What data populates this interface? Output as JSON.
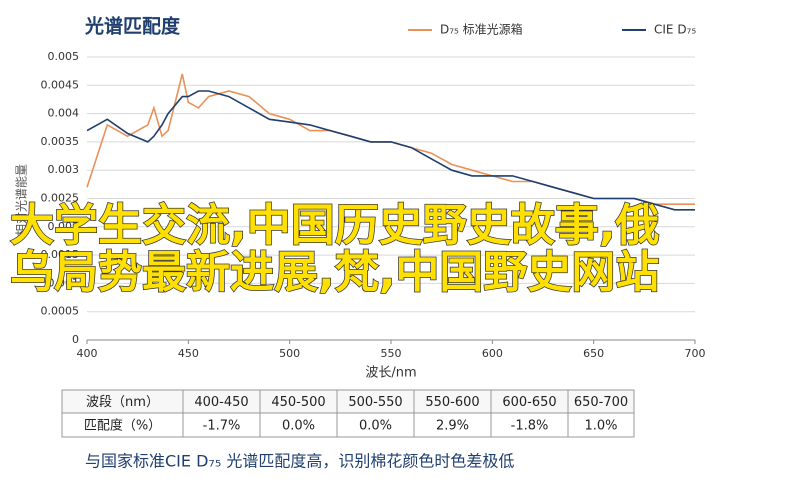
{
  "chart_data": {
    "type": "line",
    "title": "光谱匹配度",
    "xlabel": "波长/nm",
    "ylabel": "相对光谱能量",
    "x": [
      400,
      410,
      420,
      430,
      433,
      437,
      440,
      447,
      450,
      455,
      460,
      470,
      480,
      490,
      500,
      510,
      520,
      530,
      540,
      550,
      560,
      570,
      580,
      590,
      600,
      610,
      620,
      630,
      640,
      650,
      660,
      670,
      680,
      690,
      700
    ],
    "series": [
      {
        "name": "D₇₅ 标准光源箱",
        "color": "#e8925a",
        "values": [
          0.0027,
          0.0038,
          0.0036,
          0.0038,
          0.0041,
          0.0036,
          0.0037,
          0.0047,
          0.0042,
          0.0041,
          0.0043,
          0.0044,
          0.0043,
          0.004,
          0.0039,
          0.0037,
          0.0037,
          0.0036,
          0.0035,
          0.0035,
          0.0034,
          0.0033,
          0.0031,
          0.003,
          0.0029,
          0.0028,
          0.0028,
          0.0027,
          0.0026,
          0.0025,
          0.0025,
          0.0025,
          0.0024,
          0.0024,
          0.0024
        ]
      },
      {
        "name": "CIE D₇₅",
        "color": "#1f3f6e",
        "values": [
          0.0037,
          0.0039,
          0.00365,
          0.0035,
          0.0036,
          0.0038,
          0.004,
          0.0043,
          0.0043,
          0.0044,
          0.0044,
          0.0043,
          0.0041,
          0.0039,
          0.00385,
          0.0038,
          0.0037,
          0.0036,
          0.0035,
          0.0035,
          0.0034,
          0.0032,
          0.003,
          0.0029,
          0.0029,
          0.0029,
          0.0028,
          0.0027,
          0.0026,
          0.0025,
          0.0025,
          0.0025,
          0.0024,
          0.0023,
          0.0023
        ]
      }
    ],
    "xlim": [
      400,
      700
    ],
    "xticks": [
      400,
      450,
      500,
      550,
      600,
      650,
      700
    ],
    "ylim": [
      0,
      0.005
    ],
    "yticks": [
      0,
      0.0005,
      0.001,
      0.0015,
      0.002,
      0.0025,
      0.003,
      0.0035,
      0.004,
      0.0045,
      0.005
    ],
    "grid": true
  },
  "table": {
    "rows": [
      [
        "波段（nm）",
        "400-450",
        "450-500",
        "500-550",
        "550-600",
        "600-650",
        "650-700"
      ],
      [
        "匹配度（%）",
        "-1.7%",
        "0.0%",
        "0.0%",
        "2.9%",
        "-1.8%",
        "1.0%"
      ]
    ]
  },
  "caption": "与国家标准CIE D₇₅ 光谱匹配度高，识别棉花颜色时色差极低",
  "overlay": [
    "大学生交流,中国历史野史故事,俄",
    "乌局势最新进展,梵,中国野史网站"
  ]
}
